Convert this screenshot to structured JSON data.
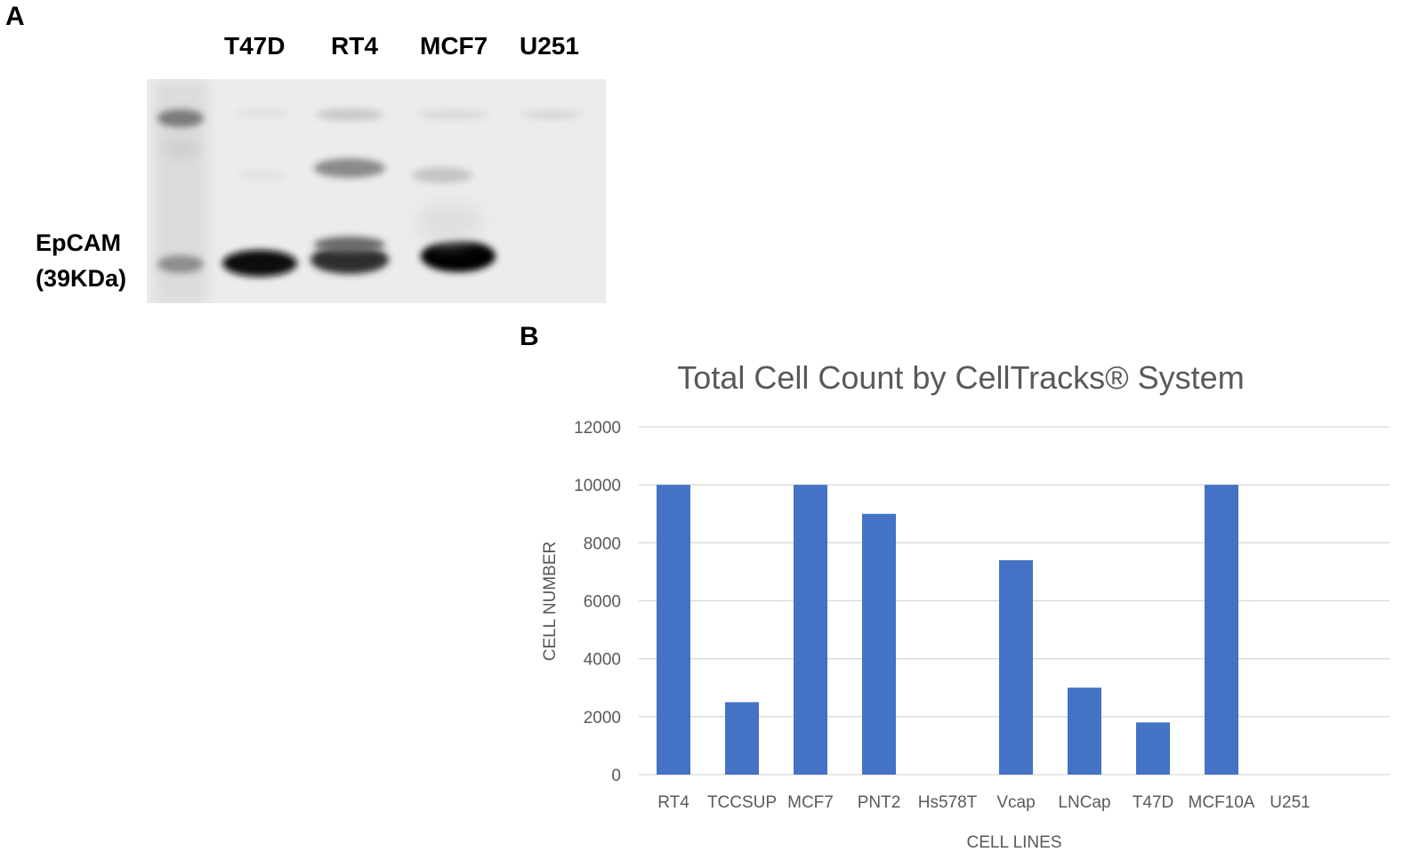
{
  "panel_a": {
    "label": "A",
    "lanes": [
      "T47D",
      "RT4",
      "MCF7",
      "U251"
    ],
    "marker_line1": "EpCAM",
    "marker_line2": "(39KDa)"
  },
  "panel_b": {
    "label": "B"
  },
  "chart_data": {
    "type": "bar",
    "title": "Total Cell Count by CellTracks® System",
    "xlabel": "CELL LINES",
    "ylabel": "CELL NUMBER",
    "categories": [
      "RT4",
      "TCCSUP",
      "MCF7",
      "PNT2",
      "Hs578T",
      "Vcap",
      "LNCap",
      "T47D",
      "MCF10A",
      "U251"
    ],
    "values": [
      10000,
      2500,
      10000,
      9000,
      0,
      7400,
      3000,
      1800,
      10000,
      0
    ],
    "ylim": [
      0,
      12000
    ],
    "yticks": [
      0,
      2000,
      4000,
      6000,
      8000,
      10000,
      12000
    ],
    "grid": true,
    "legend": "none",
    "bar_color": "#4472c4"
  }
}
